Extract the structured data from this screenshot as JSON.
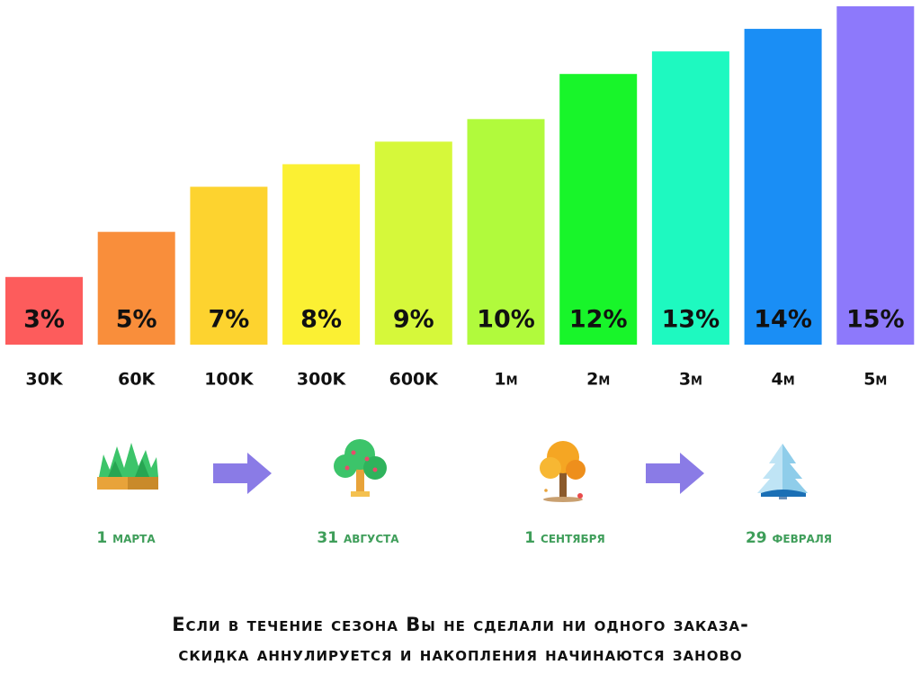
{
  "chart_data": {
    "type": "bar",
    "categories": [
      "30K",
      "60K",
      "100K",
      "300K",
      "600K",
      "1м",
      "2м",
      "3м",
      "4м",
      "5м"
    ],
    "values": [
      3,
      5,
      7,
      8,
      9,
      10,
      12,
      13,
      14,
      15
    ],
    "value_labels": [
      "3%",
      "5%",
      "7%",
      "8%",
      "9%",
      "10%",
      "12%",
      "13%",
      "14%",
      "15%"
    ],
    "colors": [
      "#fd5c5c",
      "#f98e3b",
      "#fdd32f",
      "#fbf033",
      "#d6f83a",
      "#b1fa3c",
      "#18f52a",
      "#1ef9c0",
      "#1a8ef5",
      "#8d79fb"
    ],
    "ylim": [
      0,
      15
    ]
  },
  "seasons": {
    "dates": [
      "1 марта",
      "31 августа",
      "1 сентября",
      "29 февраля"
    ]
  },
  "footer": {
    "lines": [
      "Если в течение сезона Вы не сделали ни одного заказа-",
      "скидка аннулируется и накопления начинаются заново"
    ]
  }
}
